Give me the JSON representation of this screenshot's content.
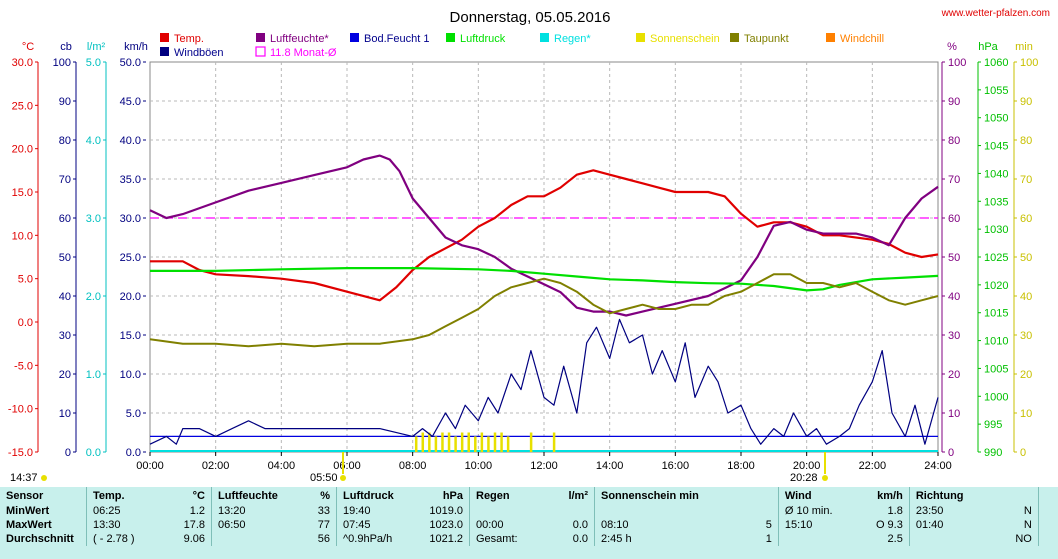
{
  "page": {
    "title": "Donnerstag, 05.05.2016",
    "site": "www.wetter-pfalzen.com"
  },
  "colors": {
    "temp": "#e00000",
    "humidity": "#800080",
    "wind": "#000080",
    "pressure": "#00e000",
    "dewpoint": "#808000",
    "sun": "#e8e000",
    "rain": "#00e0e0",
    "soil": "#0000e0",
    "windchill": "#ff8000",
    "monthavg": "#ff00ff",
    "grid": "#b8b8b8"
  },
  "legend": [
    {
      "label": "Temp.",
      "color": "#e00000",
      "type": "fill"
    },
    {
      "label": "Windböen",
      "color": "#000080",
      "type": "fill"
    },
    {
      "label": "Luftfeuchte*",
      "color": "#800080",
      "type": "fill"
    },
    {
      "label": "11.8 Monat-Ø",
      "color": "#ff00ff",
      "type": "outline"
    },
    {
      "label": "Bod.Feucht 1",
      "color": "#0000e0",
      "type": "fill"
    },
    {
      "label": "Luftdruck",
      "color": "#00e000",
      "type": "fill"
    },
    {
      "label": "Regen*",
      "color": "#00e0e0",
      "type": "fill"
    },
    {
      "label": "Sonnenschein",
      "color": "#e8e000",
      "type": "fill"
    },
    {
      "label": "Taupunkt",
      "color": "#808000",
      "type": "fill"
    },
    {
      "label": "Windchill",
      "color": "#ff8000",
      "type": "fill"
    }
  ],
  "chart_data": {
    "type": "line",
    "title": "Donnerstag, 05.05.2016",
    "x_ticks": [
      "00:00",
      "02:00",
      "04:00",
      "06:00",
      "08:00",
      "10:00",
      "12:00",
      "14:00",
      "16:00",
      "18:00",
      "20:00",
      "22:00",
      "24:00"
    ],
    "x_range_hours": [
      0,
      24
    ],
    "axes": {
      "temp_c": {
        "unit": "°C",
        "range": [
          -15,
          30
        ],
        "ticks": [
          "30.0",
          "25.0",
          "20.0",
          "15.0",
          "10.0",
          "5.0",
          "0.0",
          "-5.0",
          "-10.0",
          "-15.0"
        ]
      },
      "cb": {
        "unit": "cb",
        "range": [
          0,
          100
        ],
        "ticks": [
          "100",
          "90",
          "80",
          "70",
          "60",
          "50",
          "40",
          "30",
          "20",
          "10",
          "0"
        ]
      },
      "rain": {
        "unit": "l/m²",
        "range": [
          0,
          5
        ],
        "ticks": [
          "5.0",
          "4.0",
          "3.0",
          "2.0",
          "1.0",
          "0.0"
        ]
      },
      "kmh": {
        "unit": "km/h",
        "range": [
          0,
          50
        ],
        "ticks": [
          "50.0",
          "45.0",
          "40.0",
          "35.0",
          "30.0",
          "25.0",
          "20.0",
          "15.0",
          "10.0",
          "5.0",
          "0.0"
        ]
      },
      "percent": {
        "unit": "%",
        "range": [
          0,
          100
        ],
        "ticks": [
          "100",
          "90",
          "80",
          "70",
          "60",
          "50",
          "40",
          "30",
          "20",
          "10",
          "0"
        ]
      },
      "hpa": {
        "unit": "hPa",
        "range": [
          990,
          1060
        ],
        "ticks": [
          "1060",
          "1055",
          "1050",
          "1045",
          "1040",
          "1035",
          "1030",
          "1025",
          "1020",
          "1015",
          "1010",
          "1005",
          "1000",
          "995",
          "990"
        ]
      },
      "min": {
        "unit": "min",
        "range": [
          0,
          100
        ],
        "ticks": [
          "100",
          "90",
          "80",
          "70",
          "60",
          "50",
          "40",
          "30",
          "20",
          "10",
          "0"
        ]
      }
    },
    "series": [
      {
        "name": "Temp.",
        "axis": "temp_c",
        "x": [
          0,
          1,
          1.5,
          2,
          3,
          4,
          5,
          6,
          7,
          7.5,
          8,
          8.5,
          9,
          9.5,
          10,
          10.5,
          11,
          11.5,
          12,
          12.5,
          13,
          13.5,
          14,
          14.5,
          15,
          15.5,
          16,
          17,
          17.5,
          18,
          18.5,
          19,
          19.5,
          20,
          20.5,
          21,
          22,
          22.5,
          23,
          23.5,
          24
        ],
        "y": [
          7.0,
          7.0,
          6.0,
          5.5,
          5.3,
          5.0,
          4.5,
          3.5,
          2.5,
          4.0,
          6.0,
          7.5,
          8.5,
          9.5,
          11.0,
          12.0,
          13.5,
          14.5,
          14.5,
          15.5,
          17.0,
          17.5,
          17.0,
          16.5,
          16.0,
          15.5,
          15.0,
          15.0,
          14.5,
          12.5,
          11.0,
          11.5,
          11.5,
          11.0,
          10.0,
          10.0,
          9.5,
          9.0,
          8.0,
          7.5,
          7.8
        ]
      },
      {
        "name": "Luftfeuchte*",
        "axis": "percent",
        "x": [
          0,
          0.5,
          1,
          2,
          3,
          4,
          5,
          6,
          6.5,
          7,
          7.3,
          7.6,
          8,
          8.5,
          9,
          9.5,
          10,
          10.5,
          11,
          11.5,
          12,
          12.5,
          13,
          13.5,
          14,
          14.5,
          15,
          15.5,
          16,
          17,
          17.5,
          18,
          18.5,
          19,
          19.5,
          20,
          20.5,
          21,
          21.5,
          22,
          22.5,
          23,
          23.5,
          24
        ],
        "y": [
          62,
          60,
          61,
          64,
          67,
          69,
          71,
          73,
          75,
          76,
          75,
          72,
          65,
          60,
          55,
          53,
          52,
          50,
          47,
          45,
          43,
          41,
          37,
          36,
          36,
          35,
          36,
          37,
          38,
          40,
          42,
          44,
          50,
          58,
          59,
          57,
          56,
          56,
          56,
          55,
          53,
          60,
          65,
          68
        ]
      },
      {
        "name": "Luftdruck",
        "axis": "hpa",
        "x": [
          0,
          2,
          4,
          6,
          8,
          10,
          11,
          12,
          13,
          14,
          15,
          16,
          17,
          18,
          19,
          20,
          20.5,
          21,
          22,
          23,
          24
        ],
        "y": [
          1022.5,
          1022.5,
          1022.8,
          1023.0,
          1023.0,
          1022.8,
          1022.5,
          1022.0,
          1021.5,
          1021.0,
          1020.8,
          1020.5,
          1020.3,
          1020.2,
          1019.8,
          1019.0,
          1019.2,
          1020.0,
          1021.0,
          1021.3,
          1021.6
        ]
      },
      {
        "name": "Taupunkt",
        "axis": "temp_c",
        "x": [
          0,
          1,
          2,
          3,
          4,
          5,
          6,
          7,
          8,
          8.5,
          9,
          9.5,
          10,
          10.5,
          11,
          11.5,
          12,
          12.5,
          13,
          13.5,
          14,
          14.5,
          15,
          15.5,
          16,
          16.5,
          17,
          17.5,
          18,
          18.5,
          19,
          19.5,
          20,
          20.5,
          21,
          21.5,
          22,
          22.5,
          23,
          23.5,
          24
        ],
        "y": [
          -2.0,
          -2.5,
          -2.5,
          -2.8,
          -2.5,
          -2.8,
          -2.5,
          -2.5,
          -2.0,
          -1.5,
          -0.5,
          0.5,
          1.5,
          3.0,
          4.0,
          4.5,
          5.0,
          4.5,
          3.5,
          2.0,
          1.0,
          1.5,
          2.0,
          1.5,
          1.5,
          2.0,
          2.0,
          3.0,
          3.5,
          4.5,
          5.5,
          5.5,
          4.5,
          4.5,
          4.0,
          4.5,
          3.5,
          2.5,
          2.0,
          2.5,
          3.0
        ]
      },
      {
        "name": "Windböen",
        "axis": "kmh",
        "x": [
          0,
          0.5,
          0.8,
          1,
          1.5,
          2,
          2.5,
          3,
          3.5,
          4,
          5,
          6,
          7,
          8,
          8.3,
          8.6,
          9,
          9.3,
          9.6,
          10,
          10.3,
          10.6,
          11,
          11.3,
          11.6,
          12,
          12.3,
          12.6,
          13,
          13.3,
          13.6,
          14,
          14.3,
          14.6,
          15,
          15.3,
          15.6,
          16,
          16.3,
          16.6,
          17,
          17.3,
          17.6,
          18,
          18.3,
          18.6,
          19,
          19.3,
          19.6,
          20,
          20.3,
          20.6,
          21,
          21.3,
          21.6,
          22,
          22.3,
          22.6,
          23,
          23.3,
          23.6,
          24
        ],
        "y": [
          1,
          2,
          1,
          3,
          3,
          2,
          3,
          4,
          3,
          3,
          3,
          3,
          3,
          2,
          3,
          2,
          5,
          3,
          6,
          4,
          7,
          5,
          10,
          8,
          13,
          7,
          6,
          11,
          5,
          14,
          16,
          12,
          17,
          14,
          15,
          10,
          13,
          9,
          14,
          7,
          11,
          9,
          5,
          6,
          3,
          1,
          3,
          2,
          5,
          2,
          3,
          1,
          2,
          3,
          6,
          9,
          13,
          5,
          2,
          6,
          1,
          7
        ]
      }
    ],
    "sun_bars": {
      "name": "Sonnenschein",
      "axis": "min",
      "x": [
        8.1,
        8.3,
        8.5,
        8.7,
        8.9,
        9.1,
        9.3,
        9.5,
        9.7,
        9.9,
        10.1,
        10.3,
        10.5,
        10.7,
        10.9,
        11.6,
        12.3
      ],
      "y": [
        4,
        5,
        5,
        4,
        5,
        5,
        4,
        5,
        5,
        4,
        5,
        4,
        5,
        5,
        4,
        5,
        5
      ]
    },
    "monthly_avg_humidity": {
      "label": "11.8 Monat-Ø",
      "axis": "percent",
      "value": 60
    },
    "soil_moisture": {
      "name": "Bod.Feucht 1",
      "axis": "cb",
      "value": 4
    },
    "time_labels": {
      "start": "14:37",
      "sunrise": "05:50",
      "sunset": "20:28"
    }
  },
  "stats": {
    "headers": {
      "sensor": "Sensor",
      "temp": "Temp.",
      "temp_unit": "°C",
      "hum": "Luftfeuchte",
      "hum_unit": "%",
      "press": "Luftdruck",
      "press_unit": "hPa",
      "rain": "Regen",
      "rain_unit": "l/m²",
      "sun": "Sonnenschein min",
      "wind": "Wind",
      "wind_unit": "km/h",
      "dir": "Richtung"
    },
    "rows": [
      {
        "label": "MinWert",
        "t_time": "06:25",
        "t_val": "1.2",
        "h_time": "13:20",
        "h_val": "33",
        "p_time": "19:40",
        "p_val": "1019.0",
        "r_time": "",
        "r_val": "",
        "s_time": "",
        "s_val": "",
        "w_label": "Ø 10 min.",
        "w_val": "1.8",
        "d_time": "23:50",
        "d_val": "N"
      },
      {
        "label": "MaxWert",
        "t_time": "13:30",
        "t_val": "17.8",
        "h_time": "06:50",
        "h_val": "77",
        "p_time": "07:45",
        "p_val": "1023.0",
        "r_time": "00:00",
        "r_val": "0.0",
        "s_time": "08:10",
        "s_val": "5",
        "w_label": "15:10",
        "w_val": "O 9.3",
        "d_time": "01:40",
        "d_val": "N"
      },
      {
        "label": "Durchschnitt",
        "t_time": "( - 2.78 )",
        "t_val": "9.06",
        "h_time": "",
        "h_val": "56",
        "p_time": "^0.9hPa/h",
        "p_val": "1021.2",
        "r_time": "Gesamt:",
        "r_val": "0.0",
        "s_time": "2:45 h",
        "s_val": "1",
        "w_label": "",
        "w_val": "2.5",
        "d_time": "",
        "d_val": "NO"
      }
    ]
  }
}
